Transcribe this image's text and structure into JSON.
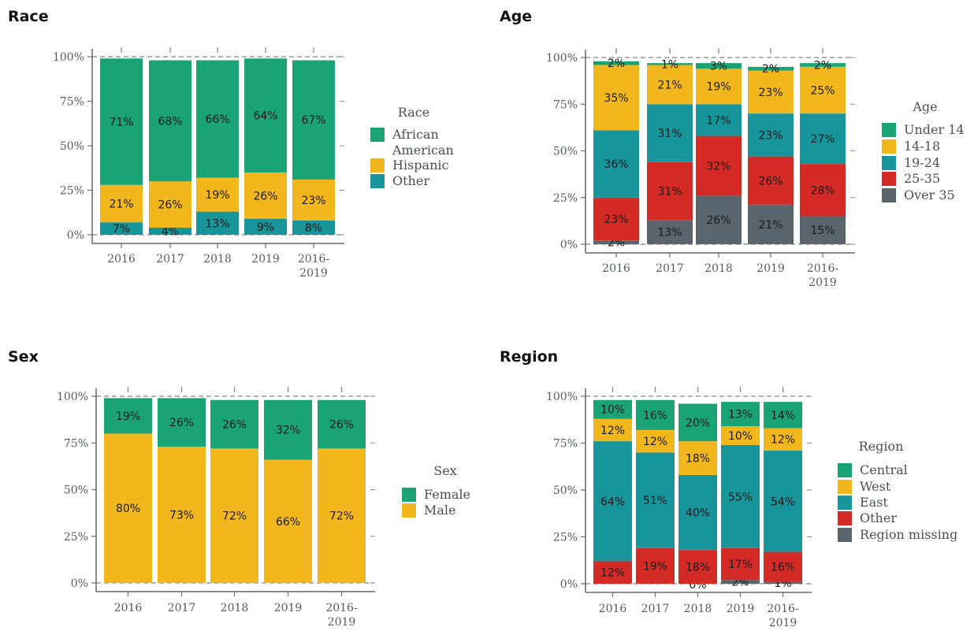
{
  "colors": {
    "green": "#1aa374",
    "yellow": "#f1b71c",
    "teal": "#18959a",
    "red": "#d52b27",
    "gray": "#59646d"
  },
  "chart_data": [
    {
      "type": "bar",
      "stacked": true,
      "title": "Race",
      "categories": [
        "2016",
        "2017",
        "2018",
        "2019",
        "2016-2019"
      ],
      "ylim": [
        0,
        100
      ],
      "yticks": [
        "0%",
        "25%",
        "50%",
        "75%",
        "100%"
      ],
      "legend_title": "Race",
      "legend": [
        {
          "label": "African American",
          "color": "#1aa374"
        },
        {
          "label": "Hispanic",
          "color": "#f1b71c"
        },
        {
          "label": "Other",
          "color": "#18959a"
        }
      ],
      "series": [
        {
          "name": "Other",
          "color": "#18959a",
          "values": [
            7,
            4,
            13,
            9,
            8
          ],
          "labels": [
            "7%",
            "4%",
            "13%",
            "9%",
            "8%"
          ]
        },
        {
          "name": "Hispanic",
          "color": "#f1b71c",
          "values": [
            21,
            26,
            19,
            26,
            23
          ],
          "labels": [
            "21%",
            "26%",
            "19%",
            "26%",
            "23%"
          ]
        },
        {
          "name": "African American",
          "color": "#1aa374",
          "values": [
            71,
            68,
            66,
            64,
            67
          ],
          "labels": [
            "71%",
            "68%",
            "66%",
            "64%",
            "67%"
          ]
        }
      ]
    },
    {
      "type": "bar",
      "stacked": true,
      "title": "Age",
      "categories": [
        "2016",
        "2017",
        "2018",
        "2019",
        "2016-2019"
      ],
      "ylim": [
        0,
        100
      ],
      "yticks": [
        "0%",
        "25%",
        "50%",
        "75%",
        "100%"
      ],
      "legend_title": "Age",
      "legend": [
        {
          "label": "Under 14",
          "color": "#1aa374"
        },
        {
          "label": "14-18",
          "color": "#f1b71c"
        },
        {
          "label": "19-24",
          "color": "#18959a"
        },
        {
          "label": "25-35",
          "color": "#d52b27"
        },
        {
          "label": "Over 35",
          "color": "#59646d"
        }
      ],
      "series": [
        {
          "name": "Over 35",
          "color": "#59646d",
          "values": [
            2,
            13,
            26,
            21,
            15
          ],
          "labels": [
            "2%",
            "13%",
            "26%",
            "21%",
            "15%"
          ]
        },
        {
          "name": "25-35",
          "color": "#d52b27",
          "values": [
            23,
            31,
            32,
            26,
            28
          ],
          "labels": [
            "23%",
            "31%",
            "32%",
            "26%",
            "28%"
          ]
        },
        {
          "name": "19-24",
          "color": "#18959a",
          "values": [
            36,
            31,
            17,
            23,
            27
          ],
          "labels": [
            "36%",
            "31%",
            "17%",
            "23%",
            "27%"
          ]
        },
        {
          "name": "14-18",
          "color": "#f1b71c",
          "values": [
            35,
            21,
            19,
            23,
            25
          ],
          "labels": [
            "35%",
            "21%",
            "19%",
            "23%",
            "25%"
          ]
        },
        {
          "name": "Under 14",
          "color": "#1aa374",
          "values": [
            2,
            1,
            3,
            2,
            2
          ],
          "labels": [
            "2%",
            "1%",
            "3%",
            "2%",
            "2%"
          ]
        }
      ]
    },
    {
      "type": "bar",
      "stacked": true,
      "title": "Sex",
      "categories": [
        "2016",
        "2017",
        "2018",
        "2019",
        "2016-2019"
      ],
      "ylim": [
        0,
        100
      ],
      "yticks": [
        "0%",
        "25%",
        "50%",
        "75%",
        "100%"
      ],
      "legend_title": "Sex",
      "legend": [
        {
          "label": "Female",
          "color": "#1aa374"
        },
        {
          "label": "Male",
          "color": "#f1b71c"
        }
      ],
      "series": [
        {
          "name": "Male",
          "color": "#f1b71c",
          "values": [
            80,
            73,
            72,
            66,
            72
          ],
          "labels": [
            "80%",
            "73%",
            "72%",
            "66%",
            "72%"
          ]
        },
        {
          "name": "Female",
          "color": "#1aa374",
          "values": [
            19,
            26,
            26,
            32,
            26
          ],
          "labels": [
            "19%",
            "26%",
            "26%",
            "32%",
            "26%"
          ]
        }
      ]
    },
    {
      "type": "bar",
      "stacked": true,
      "title": "Region",
      "categories": [
        "2016",
        "2017",
        "2018",
        "2019",
        "2016-2019"
      ],
      "ylim": [
        0,
        100
      ],
      "yticks": [
        "0%",
        "25%",
        "50%",
        "75%",
        "100%"
      ],
      "legend_title": "Region",
      "legend": [
        {
          "label": "Central",
          "color": "#1aa374"
        },
        {
          "label": "West",
          "color": "#f1b71c"
        },
        {
          "label": "East",
          "color": "#18959a"
        },
        {
          "label": "Other",
          "color": "#d52b27"
        },
        {
          "label": "Region missing",
          "color": "#59646d"
        }
      ],
      "series": [
        {
          "name": "Region missing",
          "color": "#59646d",
          "values": [
            0,
            0,
            0,
            2,
            1
          ],
          "labels": [
            "",
            "",
            "0%",
            "2%",
            "1%"
          ]
        },
        {
          "name": "Other",
          "color": "#d52b27",
          "values": [
            12,
            19,
            18,
            17,
            16
          ],
          "labels": [
            "12%",
            "19%",
            "18%",
            "17%",
            "16%"
          ]
        },
        {
          "name": "East",
          "color": "#18959a",
          "values": [
            64,
            51,
            40,
            55,
            54
          ],
          "labels": [
            "64%",
            "51%",
            "40%",
            "55%",
            "54%"
          ]
        },
        {
          "name": "West",
          "color": "#f1b71c",
          "values": [
            12,
            12,
            18,
            10,
            12
          ],
          "labels": [
            "12%",
            "12%",
            "18%",
            "10%",
            "12%"
          ]
        },
        {
          "name": "Central",
          "color": "#1aa374",
          "values": [
            10,
            16,
            20,
            13,
            14
          ],
          "labels": [
            "10%",
            "16%",
            "20%",
            "13%",
            "14%"
          ]
        }
      ]
    }
  ]
}
